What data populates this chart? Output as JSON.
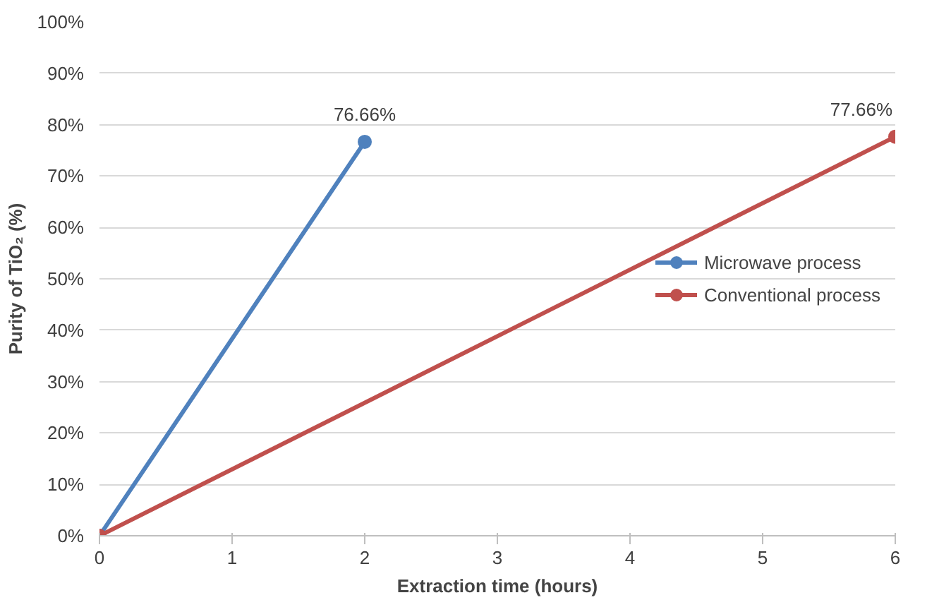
{
  "chart_data": {
    "type": "line",
    "xlabel": "Extraction time (hours)",
    "ylabel": "Purity of TiO₂ (%)",
    "series": [
      {
        "name": "Microwave process",
        "color": "#4f81bd",
        "x": [
          0,
          2
        ],
        "values": [
          0,
          76.66
        ],
        "value_labels": [
          null,
          "76.66%"
        ]
      },
      {
        "name": "Conventional process",
        "color": "#c0504d",
        "x": [
          0,
          6
        ],
        "values": [
          0,
          77.66
        ],
        "value_labels": [
          null,
          "77.66%"
        ]
      }
    ],
    "xlim": [
      0,
      6
    ],
    "xticks": [
      0,
      1,
      2,
      3,
      4,
      5,
      6
    ],
    "ylim": [
      0,
      100
    ],
    "yticks": [
      {
        "value": 0,
        "label": "0%"
      },
      {
        "value": 10,
        "label": "10%"
      },
      {
        "value": 20,
        "label": "20%"
      },
      {
        "value": 30,
        "label": "30%"
      },
      {
        "value": 40,
        "label": "40%"
      },
      {
        "value": 50,
        "label": "50%"
      },
      {
        "value": 60,
        "label": "60%"
      },
      {
        "value": 70,
        "label": "70%"
      },
      {
        "value": 80,
        "label": "80%"
      },
      {
        "value": 90,
        "label": "90%"
      },
      {
        "value": 100,
        "label": "100%"
      }
    ],
    "grid": "y",
    "legend": "right",
    "marker": "circle",
    "line_style": "solid"
  }
}
